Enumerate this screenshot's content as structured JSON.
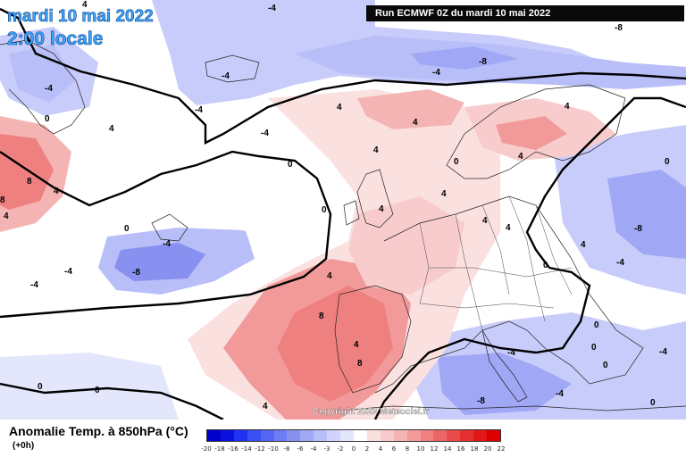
{
  "title": {
    "date": "mardi 10 mai 2022",
    "time": "2:00 locale"
  },
  "run_info": "Run ECMWF 0Z du mardi 10 mai 2022",
  "copyright": "Copyright 2022 Meteociel.fr",
  "legend": {
    "title": "Anomalie Temp. à 850hPa (°C)",
    "subtitle": "(+0h)",
    "ticks": [
      "-20",
      "-18",
      "-16",
      "-14",
      "-12",
      "-10",
      "-8",
      "-6",
      "-4",
      "-3",
      "-2",
      "0",
      "2",
      "4",
      "6",
      "8",
      "10",
      "12",
      "14",
      "16",
      "18",
      "20",
      "22"
    ],
    "colors": [
      "#0000cc",
      "#0a10e0",
      "#1f33f0",
      "#3a50f5",
      "#5566f5",
      "#6f7df5",
      "#8890f0",
      "#a0a8f5",
      "#b8bef8",
      "#d0d4fa",
      "#e4e6fc",
      "#ffffff",
      "#fbe0e0",
      "#f8cccc",
      "#f5b4b4",
      "#f29a9a",
      "#ef8080",
      "#ec6666",
      "#e94a4a",
      "#e63030",
      "#e21818",
      "#de0000"
    ]
  },
  "contour_labels": [
    {
      "text": "4"
    },
    {
      "text": "-4"
    },
    {
      "text": "-8"
    },
    {
      "text": "-4"
    },
    {
      "text": "-4"
    },
    {
      "text": "-4"
    },
    {
      "text": "-8"
    },
    {
      "text": "-4"
    },
    {
      "text": "0"
    },
    {
      "text": "4"
    },
    {
      "text": "8"
    },
    {
      "text": "4"
    },
    {
      "text": "8"
    },
    {
      "text": "4"
    },
    {
      "text": "0"
    },
    {
      "text": "-4"
    },
    {
      "text": "-8"
    },
    {
      "text": "-4"
    },
    {
      "text": "-4"
    },
    {
      "text": "4"
    },
    {
      "text": "-4"
    },
    {
      "text": "0"
    },
    {
      "text": "4"
    },
    {
      "text": "0"
    },
    {
      "text": "0"
    },
    {
      "text": "4"
    },
    {
      "text": "4"
    },
    {
      "text": "4"
    },
    {
      "text": "4"
    },
    {
      "text": "4"
    },
    {
      "text": "4"
    },
    {
      "text": "8"
    },
    {
      "text": "4"
    },
    {
      "text": "8"
    },
    {
      "text": "4"
    },
    {
      "text": "4"
    },
    {
      "text": "4"
    },
    {
      "text": "0"
    },
    {
      "text": "4"
    },
    {
      "text": "0"
    },
    {
      "text": "-8"
    },
    {
      "text": "-4"
    },
    {
      "text": "0"
    },
    {
      "text": "-4"
    },
    {
      "text": "0"
    },
    {
      "text": "-4"
    },
    {
      "text": "0"
    },
    {
      "text": "-8"
    },
    {
      "text": "-4"
    },
    {
      "text": "0"
    },
    {
      "text": "0"
    },
    {
      "text": "0"
    }
  ]
}
